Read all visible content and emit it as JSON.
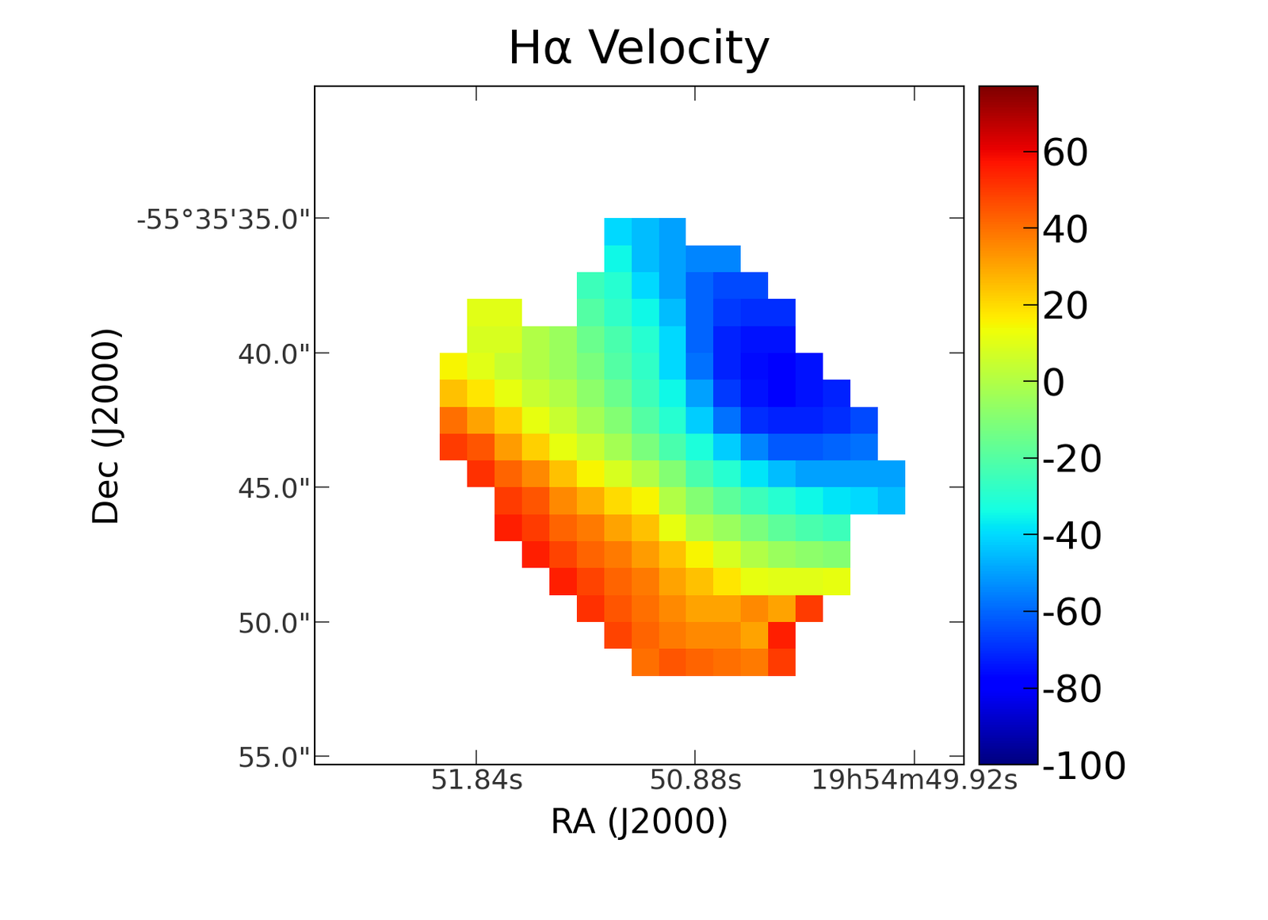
{
  "chart_data": {
    "type": "heatmap",
    "title": "Hα Velocity",
    "x_label": "RA (J2000)",
    "y_label": "Dec (J2000)",
    "color": "jet",
    "x": [
      51.94,
      51.82,
      51.7,
      51.58,
      51.46,
      51.34,
      51.22,
      51.1,
      50.98,
      50.86,
      50.74,
      50.62,
      50.5,
      50.38,
      50.26,
      50.14,
      50.02
    ],
    "y": [
      35.5,
      36.5,
      37.5,
      38.5,
      39.5,
      40.5,
      41.5,
      42.5,
      43.5,
      44.5,
      45.5,
      46.5,
      47.5,
      48.5,
      49.5,
      50.5,
      51.5
    ],
    "cells": [
      [
        null,
        null,
        null,
        null,
        null,
        null,
        -40,
        -45,
        -50,
        null,
        null,
        null,
        null,
        null,
        null,
        null,
        null
      ],
      [
        null,
        null,
        null,
        null,
        null,
        null,
        -35,
        -45,
        -50,
        -55,
        -55,
        null,
        null,
        null,
        null,
        null,
        null
      ],
      [
        null,
        null,
        null,
        null,
        null,
        -25,
        -30,
        -40,
        -50,
        -60,
        -65,
        -65,
        null,
        null,
        null,
        null,
        null
      ],
      [
        null,
        10,
        10,
        null,
        null,
        -20,
        -28,
        -35,
        -45,
        -60,
        -68,
        -70,
        -70,
        null,
        null,
        null,
        null
      ],
      [
        null,
        8,
        8,
        0,
        -5,
        -15,
        -22,
        -30,
        -40,
        -60,
        -72,
        -75,
        -75,
        null,
        null,
        null,
        null
      ],
      [
        15,
        10,
        5,
        0,
        -5,
        -12,
        -20,
        -28,
        -40,
        -58,
        -72,
        -76,
        -78,
        -75,
        null,
        null,
        null
      ],
      [
        25,
        18,
        12,
        5,
        0,
        -8,
        -15,
        -25,
        -35,
        -50,
        -68,
        -75,
        -78,
        -75,
        -72,
        null,
        null
      ],
      [
        40,
        30,
        22,
        12,
        5,
        -3,
        -10,
        -20,
        -30,
        -42,
        -58,
        -70,
        -72,
        -72,
        -70,
        -65,
        null
      ],
      [
        50,
        45,
        32,
        22,
        12,
        5,
        -3,
        -12,
        -22,
        -32,
        -42,
        -55,
        -62,
        -62,
        -60,
        -58,
        null
      ],
      [
        null,
        52,
        42,
        35,
        25,
        15,
        8,
        0,
        -10,
        -22,
        -30,
        -38,
        -45,
        -50,
        -50,
        -50,
        -50
      ],
      [
        null,
        null,
        50,
        45,
        35,
        28,
        20,
        15,
        0,
        -10,
        -18,
        -25,
        -30,
        -35,
        -38,
        -40,
        -45
      ],
      [
        null,
        null,
        55,
        50,
        42,
        38,
        30,
        25,
        12,
        0,
        -5,
        -12,
        -18,
        -22,
        -25,
        null,
        null
      ],
      [
        null,
        null,
        null,
        55,
        48,
        42,
        38,
        32,
        25,
        15,
        8,
        0,
        -5,
        -8,
        -10,
        null,
        null
      ],
      [
        null,
        null,
        null,
        null,
        55,
        48,
        42,
        38,
        30,
        25,
        18,
        12,
        10,
        10,
        12,
        null,
        null
      ],
      [
        null,
        null,
        null,
        null,
        null,
        52,
        45,
        40,
        35,
        30,
        30,
        35,
        30,
        50,
        null,
        null,
        null
      ],
      [
        null,
        null,
        null,
        null,
        null,
        null,
        48,
        42,
        38,
        35,
        35,
        30,
        55,
        null,
        null,
        null,
        null
      ],
      [
        null,
        null,
        null,
        null,
        null,
        null,
        null,
        40,
        45,
        42,
        40,
        38,
        50,
        null,
        null,
        null,
        null
      ]
    ],
    "xlim": [
      52.55,
      49.7
    ],
    "ylim": [
      55.3,
      30.1
    ],
    "xticks": [
      {
        "value": 51.84,
        "label": "51.84s"
      },
      {
        "value": 50.88,
        "label": "50.88s"
      },
      {
        "value": 49.92,
        "label": "19h54m49.92s"
      }
    ],
    "yticks": [
      {
        "value": 35,
        "label": "-55°35'35.0\""
      },
      {
        "value": 40,
        "label": "40.0\""
      },
      {
        "value": 45,
        "label": "45.0\""
      },
      {
        "value": 50,
        "label": "50.0\""
      },
      {
        "value": 55,
        "label": "55.0\""
      }
    ],
    "colorbar_range": [
      -100,
      77
    ],
    "colorbar_ticks": [
      60,
      40,
      20,
      0,
      -20,
      -40,
      -60,
      -80,
      -100
    ]
  }
}
